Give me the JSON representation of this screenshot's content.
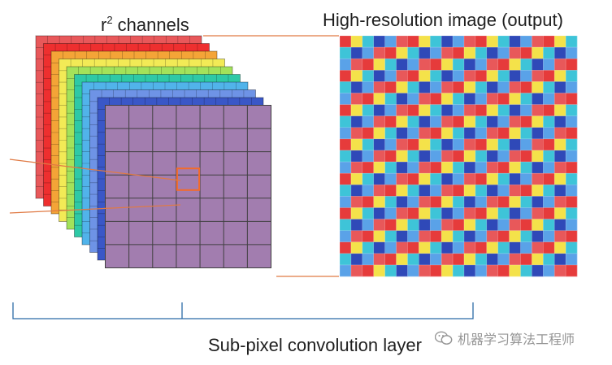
{
  "labels": {
    "channels_prefix": "r",
    "channels_sup": "2",
    "channels_suffix": " channels",
    "output": "High-resolution image (output)",
    "layer": "Sub-pixel convolution layer",
    "watermark": "机器学习算法工程师"
  },
  "colors": {
    "channel_layers": [
      "#e8585a",
      "#ee2f2f",
      "#f4a437",
      "#f2ea56",
      "#a3e25a",
      "#2ec9a6",
      "#51b3ea",
      "#6e93e6",
      "#3a57c7",
      "#a27daf"
    ],
    "output_palette": [
      "#e63b3b",
      "#f4e24a",
      "#3ec4d8",
      "#2f49b8",
      "#5aa2e8",
      "#e8585a"
    ],
    "connector_lines": "#e07a44",
    "highlight_box": "#f36b2a",
    "bracket": "#2b6aa6",
    "grid_line": "#3a3a3a"
  },
  "icons": {
    "watermark": "wechat-icon"
  }
}
